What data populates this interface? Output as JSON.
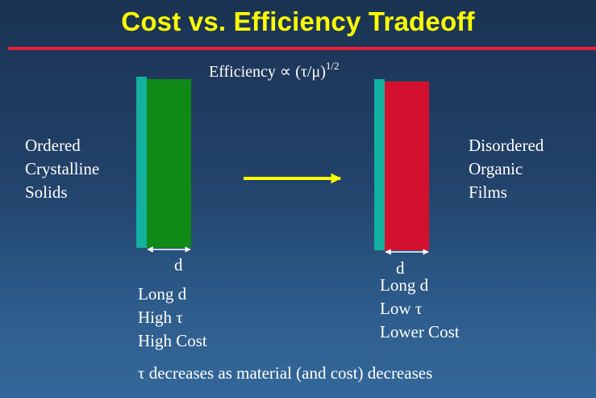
{
  "title": "Cost vs. Efficiency Tradeoff",
  "formula": {
    "lhs": "Efficiency ",
    "prop_symbol": "∝",
    "ratio": " (τ/μ)",
    "exponent": "1/2"
  },
  "left": {
    "label_lines": [
      "Ordered",
      "Crystalline",
      "Solids"
    ],
    "thickness_label": "d",
    "properties": [
      "Long d",
      "High τ",
      "High Cost"
    ]
  },
  "right": {
    "label_lines": [
      "Disordered",
      "Organic",
      "Films"
    ],
    "thickness_label": "d",
    "properties": [
      "Long d",
      "Low τ",
      "Lower Cost"
    ]
  },
  "footer": "τ decreases as material (and cost) decreases",
  "colors": {
    "title": "#ffff00",
    "rule": "#e8203a",
    "electrode": "#14b0a0",
    "left_slab": "#0f8a16",
    "right_slab": "#d3112e",
    "arrow": "#ffff00"
  }
}
